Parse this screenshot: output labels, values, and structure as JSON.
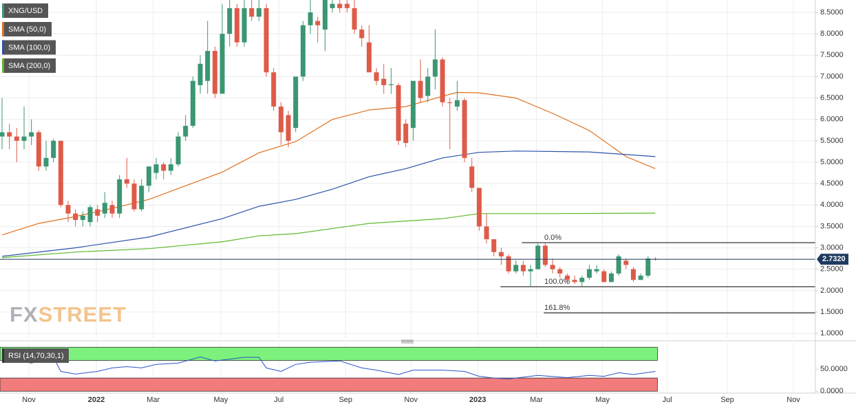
{
  "chart_data": {
    "type": "candlestick",
    "symbol": "XNG/USD",
    "up_color": "#3b9672",
    "down_color": "#de5b49",
    "xlim": [
      -0.28,
      110.8
    ],
    "xticks": [
      {
        "value": 3.66,
        "label": "Nov"
      },
      {
        "value": 12.84,
        "label": "2022"
      },
      {
        "value": 20.6,
        "label": "Mar"
      },
      {
        "value": 29.8,
        "label": "May"
      },
      {
        "value": 37.7,
        "label": "Jul"
      },
      {
        "value": 46.8,
        "label": "Sep"
      },
      {
        "value": 55.7,
        "label": "Nov"
      },
      {
        "value": 64.8,
        "label": "2023"
      },
      {
        "value": 72.8,
        "label": "Mar"
      },
      {
        "value": 81.8,
        "label": "May"
      },
      {
        "value": 90.6,
        "label": "Jul"
      },
      {
        "value": 98.8,
        "label": "Sep"
      },
      {
        "value": 107.8,
        "label": "Nov"
      }
    ],
    "ylim": [
      0.89,
      8.79
    ],
    "yticks": [
      {
        "value": 1,
        "label": "1.0000"
      },
      {
        "value": 1.5,
        "label": "1.5000"
      },
      {
        "value": 2,
        "label": "2.0000"
      },
      {
        "value": 2.5,
        "label": "2.5000"
      },
      {
        "value": 3,
        "label": "3.0000"
      },
      {
        "value": 3.5,
        "label": "3.5000"
      },
      {
        "value": 4,
        "label": "4.0000"
      },
      {
        "value": 4.5,
        "label": "4.5000"
      },
      {
        "value": 5,
        "label": "5.0000"
      },
      {
        "value": 5.5,
        "label": "5.5000"
      },
      {
        "value": 6,
        "label": "6.0000"
      },
      {
        "value": 6.5,
        "label": "6.5000"
      },
      {
        "value": 7,
        "label": "7.0000"
      },
      {
        "value": 7.5,
        "label": "7.5000"
      },
      {
        "value": 8,
        "label": "8.0000"
      },
      {
        "value": 8.5,
        "label": "8.5000"
      }
    ],
    "grid": true,
    "ohlc": {
      "open": [
        5.6,
        5.7,
        5.6,
        5.5,
        5.6,
        5.7,
        4.9,
        5.1,
        5.5,
        4.0,
        3.8,
        3.65,
        3.6,
        3.9,
        3.8,
        4.0,
        3.8,
        4.6,
        4.5,
        3.9,
        4.45,
        4.75,
        4.95,
        4.8,
        4.95,
        5.6,
        5.85,
        6.8,
        6.9,
        7.6,
        6.6,
        8.0,
        8.6,
        7.8,
        8.6,
        8.4,
        8.6,
        7.1,
        6.3,
        6.1,
        5.8,
        7.0,
        8.2,
        8.3,
        8.1,
        8.6,
        8.7,
        8.7,
        8.6,
        8.1,
        7.8,
        7.1,
        6.95,
        6.8,
        6.8,
        5.9,
        5.8,
        6.9,
        6.55,
        7.0,
        7.4,
        6.4,
        6.3,
        6.45,
        4.9,
        4.4,
        3.5,
        3.2,
        2.9,
        2.8,
        2.45,
        2.6,
        2.45,
        2.5,
        3.05,
        2.6,
        2.5,
        2.35,
        2.25,
        2.2,
        2.3,
        2.45,
        2.45,
        2.2,
        2.4,
        2.7,
        2.5,
        2.25,
        2.35,
        2.74
      ],
      "high": [
        6.5,
        5.9,
        5.8,
        6.3,
        6.0,
        5.75,
        5.5,
        5.55,
        5.5,
        4.1,
        3.9,
        3.85,
        4.0,
        4.0,
        4.3,
        4.1,
        4.7,
        5.1,
        4.6,
        4.6,
        4.9,
        5.1,
        5.0,
        5.1,
        5.7,
        6.1,
        7.0,
        7.5,
        8.3,
        7.7,
        8.7,
        8.8,
        8.7,
        8.8,
        8.8,
        8.8,
        8.7,
        7.2,
        6.4,
        6.2,
        7.0,
        8.3,
        8.8,
        8.4,
        8.8,
        8.8,
        8.8,
        8.8,
        8.8,
        8.2,
        8.2,
        7.2,
        7.3,
        7.2,
        6.85,
        6.0,
        6.9,
        7.4,
        7.2,
        8.1,
        7.45,
        6.5,
        6.9,
        6.5,
        5.1,
        4.4,
        3.8,
        3.2,
        3.0,
        2.85,
        2.7,
        2.7,
        2.6,
        3.1,
        3.1,
        2.75,
        2.55,
        2.4,
        2.35,
        2.35,
        2.6,
        2.6,
        2.5,
        2.45,
        2.85,
        2.75,
        2.55,
        2.4,
        2.8,
        2.78
      ],
      "low": [
        5.3,
        5.3,
        5.0,
        5.3,
        5.4,
        4.8,
        4.8,
        5.0,
        3.95,
        3.6,
        3.5,
        3.5,
        3.5,
        3.6,
        3.7,
        3.7,
        3.7,
        4.4,
        3.85,
        3.85,
        4.3,
        4.6,
        4.6,
        4.7,
        4.9,
        5.5,
        5.8,
        6.6,
        6.6,
        6.5,
        6.6,
        7.7,
        7.7,
        7.7,
        8.3,
        8.3,
        7.0,
        6.2,
        5.4,
        5.35,
        5.7,
        6.9,
        8.0,
        7.8,
        7.6,
        8.5,
        8.5,
        8.5,
        8.0,
        7.7,
        7.1,
        6.8,
        6.6,
        6.6,
        5.4,
        5.35,
        5.5,
        6.4,
        6.4,
        6.7,
        6.3,
        5.3,
        6.2,
        5.0,
        4.3,
        3.4,
        3.1,
        2.8,
        2.6,
        2.4,
        2.4,
        2.35,
        2.1,
        2.5,
        2.55,
        2.4,
        2.3,
        2.15,
        2.15,
        2.1,
        2.25,
        2.4,
        2.2,
        2.2,
        2.35,
        2.5,
        2.2,
        2.25,
        2.3,
        2.7
      ],
      "close": [
        5.7,
        5.6,
        5.5,
        5.6,
        5.7,
        4.9,
        5.1,
        5.5,
        4.0,
        3.8,
        3.65,
        3.75,
        3.95,
        3.75,
        4.05,
        3.8,
        4.6,
        4.5,
        3.9,
        4.45,
        4.9,
        4.95,
        4.8,
        4.95,
        5.6,
        5.85,
        6.9,
        7.3,
        7.6,
        6.6,
        8.0,
        8.6,
        7.8,
        8.6,
        8.4,
        8.6,
        7.1,
        6.3,
        5.7,
        5.5,
        7.0,
        8.2,
        8.5,
        8.2,
        8.8,
        8.7,
        8.6,
        8.6,
        8.1,
        7.9,
        7.1,
        6.9,
        6.8,
        6.82,
        5.5,
        5.45,
        6.9,
        6.5,
        7.0,
        7.4,
        6.4,
        6.38,
        6.45,
        5.1,
        4.4,
        3.5,
        3.2,
        2.9,
        2.8,
        2.45,
        2.6,
        2.45,
        2.5,
        3.05,
        2.6,
        2.5,
        2.4,
        2.25,
        2.2,
        2.3,
        2.5,
        2.5,
        2.2,
        2.4,
        2.8,
        2.6,
        2.25,
        2.35,
        2.75,
        2.732
      ]
    },
    "price_label": "2.7320",
    "price_color": "#1e3a5f",
    "overlays": [
      {
        "name": "SMA (50,0)",
        "color": "#e0701e",
        "x": [
          0,
          5,
          10,
          15,
          20,
          25,
          30,
          35,
          40,
          45,
          50,
          55,
          60,
          62,
          65,
          70,
          75,
          80,
          85,
          89
        ],
        "values": [
          3.3,
          3.57,
          3.73,
          3.92,
          4.13,
          4.45,
          4.77,
          5.22,
          5.48,
          6.0,
          6.22,
          6.3,
          6.54,
          6.63,
          6.62,
          6.5,
          6.14,
          5.74,
          5.13,
          4.85
        ]
      },
      {
        "name": "SMA (100,0)",
        "color": "#2a52a8",
        "x": [
          0,
          10,
          20,
          30,
          35,
          40,
          45,
          50,
          55,
          60,
          65,
          70,
          80,
          89
        ],
        "values": [
          2.8,
          3.0,
          3.25,
          3.68,
          3.97,
          4.13,
          4.37,
          4.66,
          4.85,
          5.1,
          5.23,
          5.26,
          5.24,
          5.13
        ]
      },
      {
        "name": "SMA (200,0)",
        "color": "#5cb82a",
        "x": [
          0,
          10,
          20,
          30,
          35,
          40,
          50,
          60,
          65,
          75,
          89
        ],
        "values": [
          2.77,
          2.9,
          2.98,
          3.14,
          3.28,
          3.33,
          3.57,
          3.68,
          3.8,
          3.8,
          3.81
        ]
      }
    ],
    "fib_levels": [
      {
        "label": "0.0%",
        "value": 3.12,
        "x_start": 70.8
      },
      {
        "label": "100.0%",
        "value": 2.09,
        "x_start": 67.9
      },
      {
        "label": "161.8%",
        "value": 1.48,
        "x_start": 73.8
      }
    ],
    "watermark": [
      "FX",
      "STREET"
    ],
    "rsi": {
      "name": "RSI (14,70,30,1)",
      "color": "#2a52c8",
      "ylim": [
        -4.2,
        108.3
      ],
      "yticks": [
        {
          "value": 0,
          "label": "0.0000"
        },
        {
          "value": 50,
          "label": "50.0000"
        }
      ],
      "overbought": [
        70,
        100
      ],
      "overbought_color": "#7cf27c",
      "oversold": [
        0,
        30
      ],
      "oversold_color": "#f27c7c",
      "x": [
        0,
        4,
        7,
        8,
        10,
        13,
        15,
        17,
        19,
        21,
        24,
        27,
        29,
        33,
        35,
        36,
        38,
        40,
        42,
        46,
        49,
        51,
        54,
        56,
        60,
        63,
        65,
        67,
        69,
        73,
        77,
        80,
        82,
        84,
        86,
        89
      ],
      "values": [
        77,
        64,
        77,
        45,
        39,
        45,
        53,
        56,
        53,
        61,
        64,
        78,
        69,
        77,
        77,
        53,
        45,
        61,
        66,
        69,
        53,
        48,
        38,
        48,
        48,
        45,
        34,
        30,
        28,
        36,
        31,
        36,
        34,
        42,
        38,
        45
      ]
    }
  }
}
